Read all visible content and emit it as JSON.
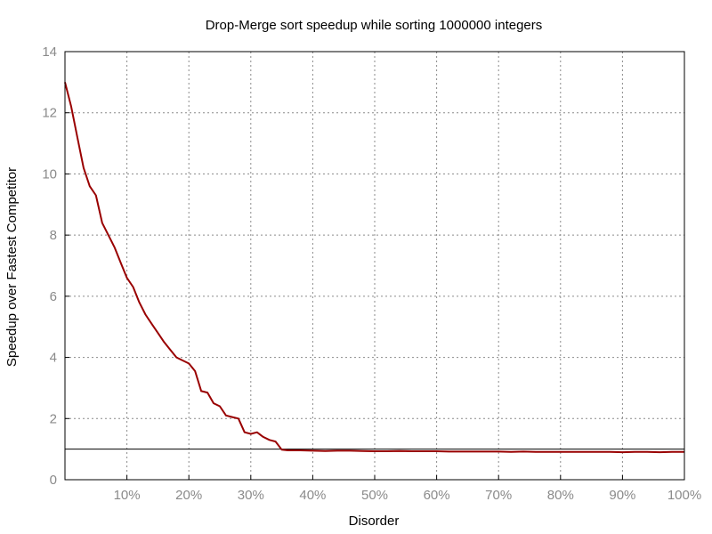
{
  "chart_data": {
    "type": "line",
    "title": "Drop-Merge sort speedup while sorting 1000000 integers",
    "xlabel": "Disorder",
    "ylabel": "Speedup over Fastest Competitor",
    "xlim": [
      0,
      100
    ],
    "ylim": [
      0,
      14
    ],
    "grid": true,
    "xticks": [
      {
        "value": 10,
        "label": "10%"
      },
      {
        "value": 20,
        "label": "20%"
      },
      {
        "value": 30,
        "label": "30%"
      },
      {
        "value": 40,
        "label": "40%"
      },
      {
        "value": 50,
        "label": "50%"
      },
      {
        "value": 60,
        "label": "60%"
      },
      {
        "value": 70,
        "label": "70%"
      },
      {
        "value": 80,
        "label": "80%"
      },
      {
        "value": 90,
        "label": "90%"
      },
      {
        "value": 100,
        "label": "100%"
      }
    ],
    "yticks": [
      {
        "value": 0,
        "label": "0"
      },
      {
        "value": 2,
        "label": "2"
      },
      {
        "value": 4,
        "label": "4"
      },
      {
        "value": 6,
        "label": "6"
      },
      {
        "value": 8,
        "label": "8"
      },
      {
        "value": 10,
        "label": "10"
      },
      {
        "value": 12,
        "label": "12"
      },
      {
        "value": 14,
        "label": "14"
      }
    ],
    "reference_line": {
      "y": 1,
      "color": "#000000"
    },
    "series": [
      {
        "color": "#990000",
        "x": [
          0,
          1,
          2,
          3,
          4,
          5,
          6,
          7,
          8,
          9,
          10,
          11,
          12,
          13,
          14,
          15,
          16,
          17,
          18,
          19,
          20,
          21,
          22,
          23,
          24,
          25,
          26,
          27,
          28,
          29,
          30,
          31,
          32,
          33,
          34,
          35,
          36,
          37,
          38,
          40,
          42,
          44,
          46,
          48,
          50,
          52,
          54,
          56,
          58,
          60,
          62,
          64,
          66,
          68,
          70,
          72,
          74,
          76,
          78,
          80,
          82,
          84,
          86,
          88,
          90,
          92,
          94,
          96,
          98,
          100
        ],
        "y": [
          13.0,
          12.2,
          11.2,
          10.2,
          9.6,
          9.3,
          8.4,
          8.0,
          7.6,
          7.1,
          6.6,
          6.3,
          5.8,
          5.4,
          5.1,
          4.8,
          4.5,
          4.25,
          4.0,
          3.9,
          3.8,
          3.55,
          2.9,
          2.85,
          2.5,
          2.4,
          2.1,
          2.05,
          2.0,
          1.55,
          1.5,
          1.55,
          1.4,
          1.3,
          1.25,
          0.98,
          0.96,
          0.96,
          0.96,
          0.95,
          0.94,
          0.95,
          0.95,
          0.94,
          0.93,
          0.93,
          0.94,
          0.93,
          0.93,
          0.93,
          0.92,
          0.92,
          0.92,
          0.92,
          0.92,
          0.91,
          0.92,
          0.91,
          0.91,
          0.91,
          0.91,
          0.91,
          0.91,
          0.91,
          0.9,
          0.91,
          0.91,
          0.9,
          0.91,
          0.91
        ]
      }
    ]
  }
}
